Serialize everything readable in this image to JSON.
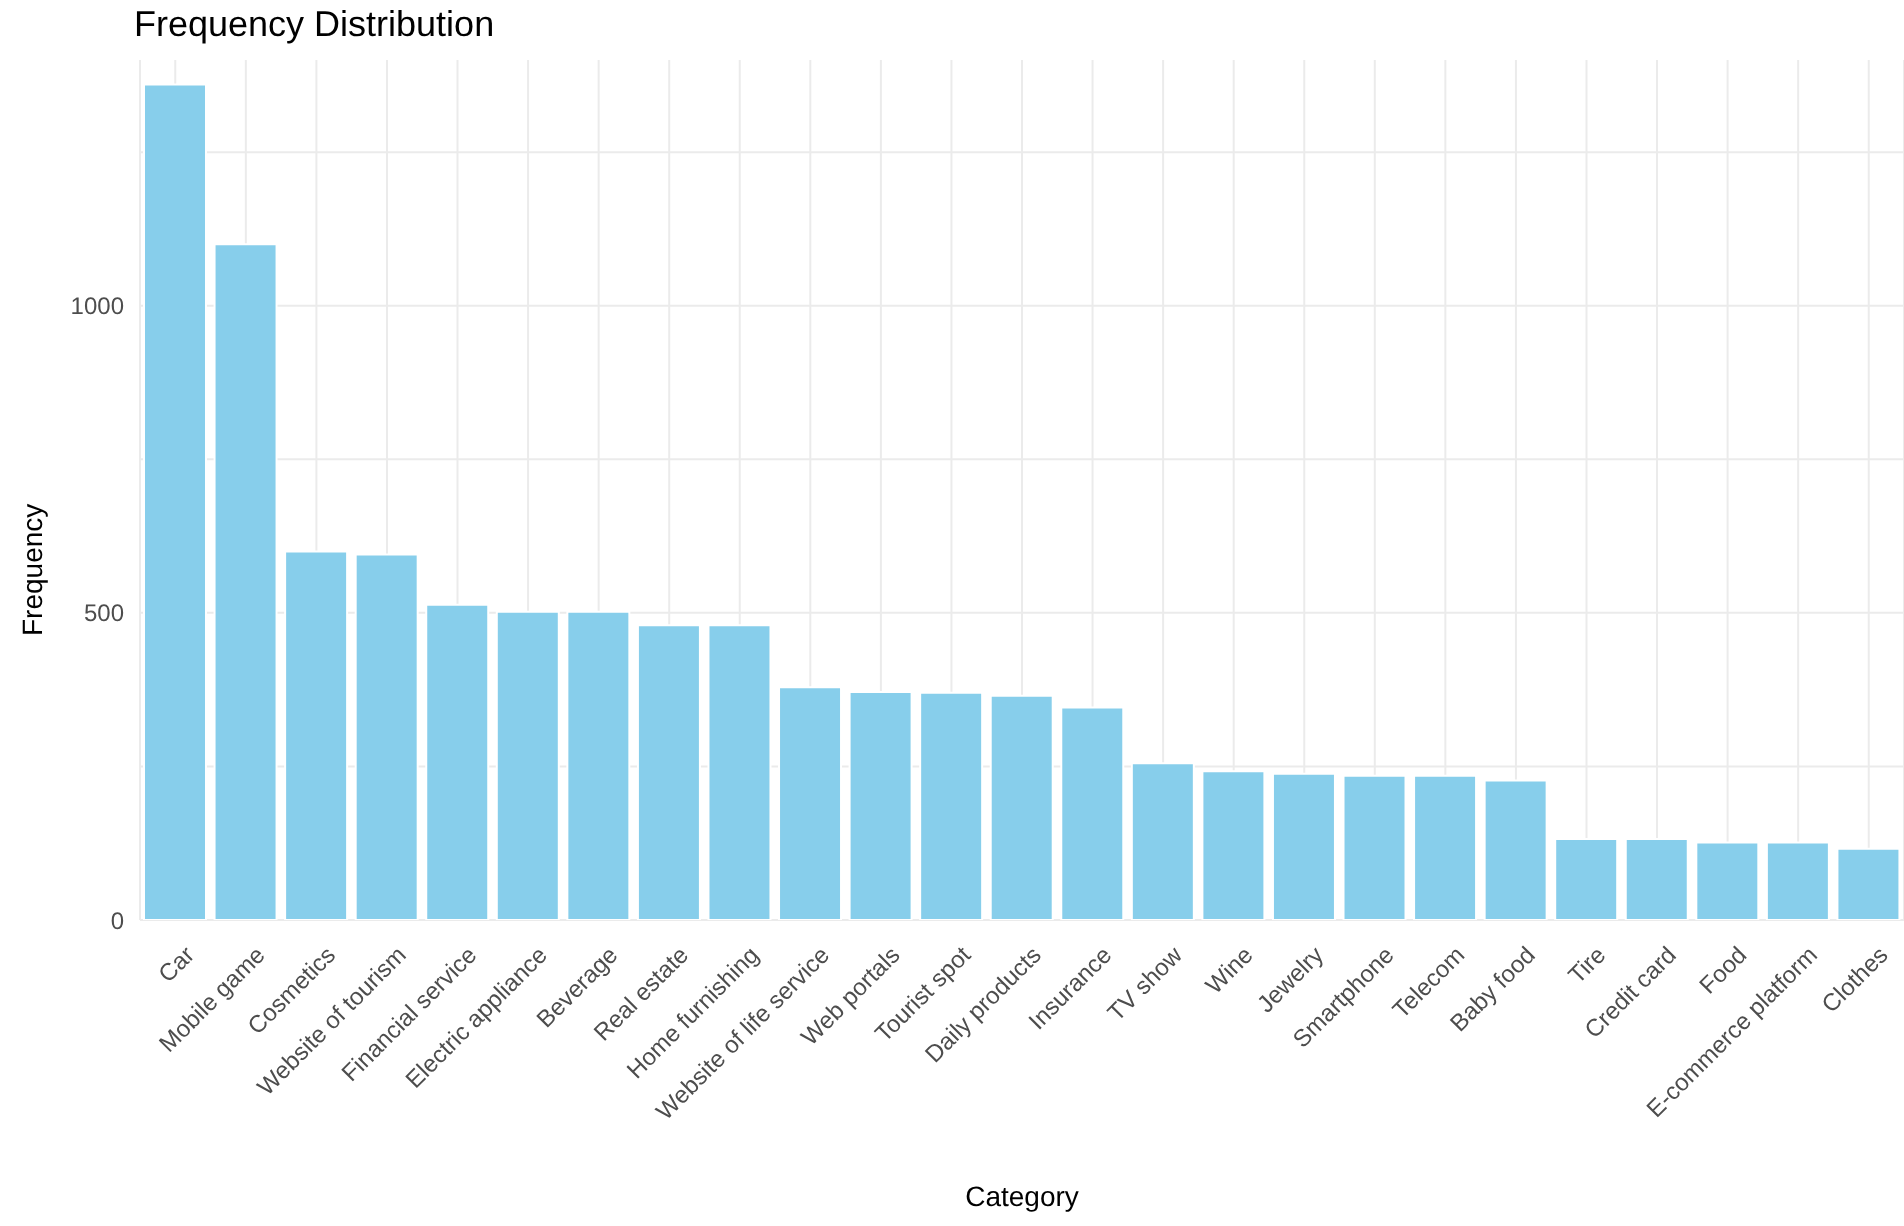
{
  "chart_data": {
    "type": "bar",
    "title": "Frequency Distribution",
    "xlabel": "Category",
    "ylabel": "Frequency",
    "categories": [
      "Car",
      "Mobile game",
      "Cosmetics",
      "Website of tourism",
      "Financial service",
      "Electric appliance",
      "Beverage",
      "Real estate",
      "Home furnishing",
      "Website of life service",
      "Web portals",
      "Tourist spot",
      "Daily products",
      "Insurance",
      "TV show",
      "Wine",
      "Jewelry",
      "Smartphone",
      "Telecom",
      "Baby food",
      "Tire",
      "Credit card",
      "Food",
      "E-commerce platform",
      "Clothes"
    ],
    "values": [
      1360,
      1100,
      600,
      595,
      513,
      502,
      502,
      480,
      480,
      379,
      371,
      370,
      365,
      346,
      255,
      242,
      238,
      235,
      235,
      227,
      132,
      132,
      126,
      126,
      116
    ],
    "color": "#87ceeb",
    "ylim": [
      0,
      1400
    ],
    "yticks": [
      0,
      {
        "value": 250,
        "label": null
      },
      500,
      {
        "value": 750,
        "label": null
      },
      1000,
      {
        "value": 1250,
        "label": null
      }
    ],
    "grid": true
  }
}
